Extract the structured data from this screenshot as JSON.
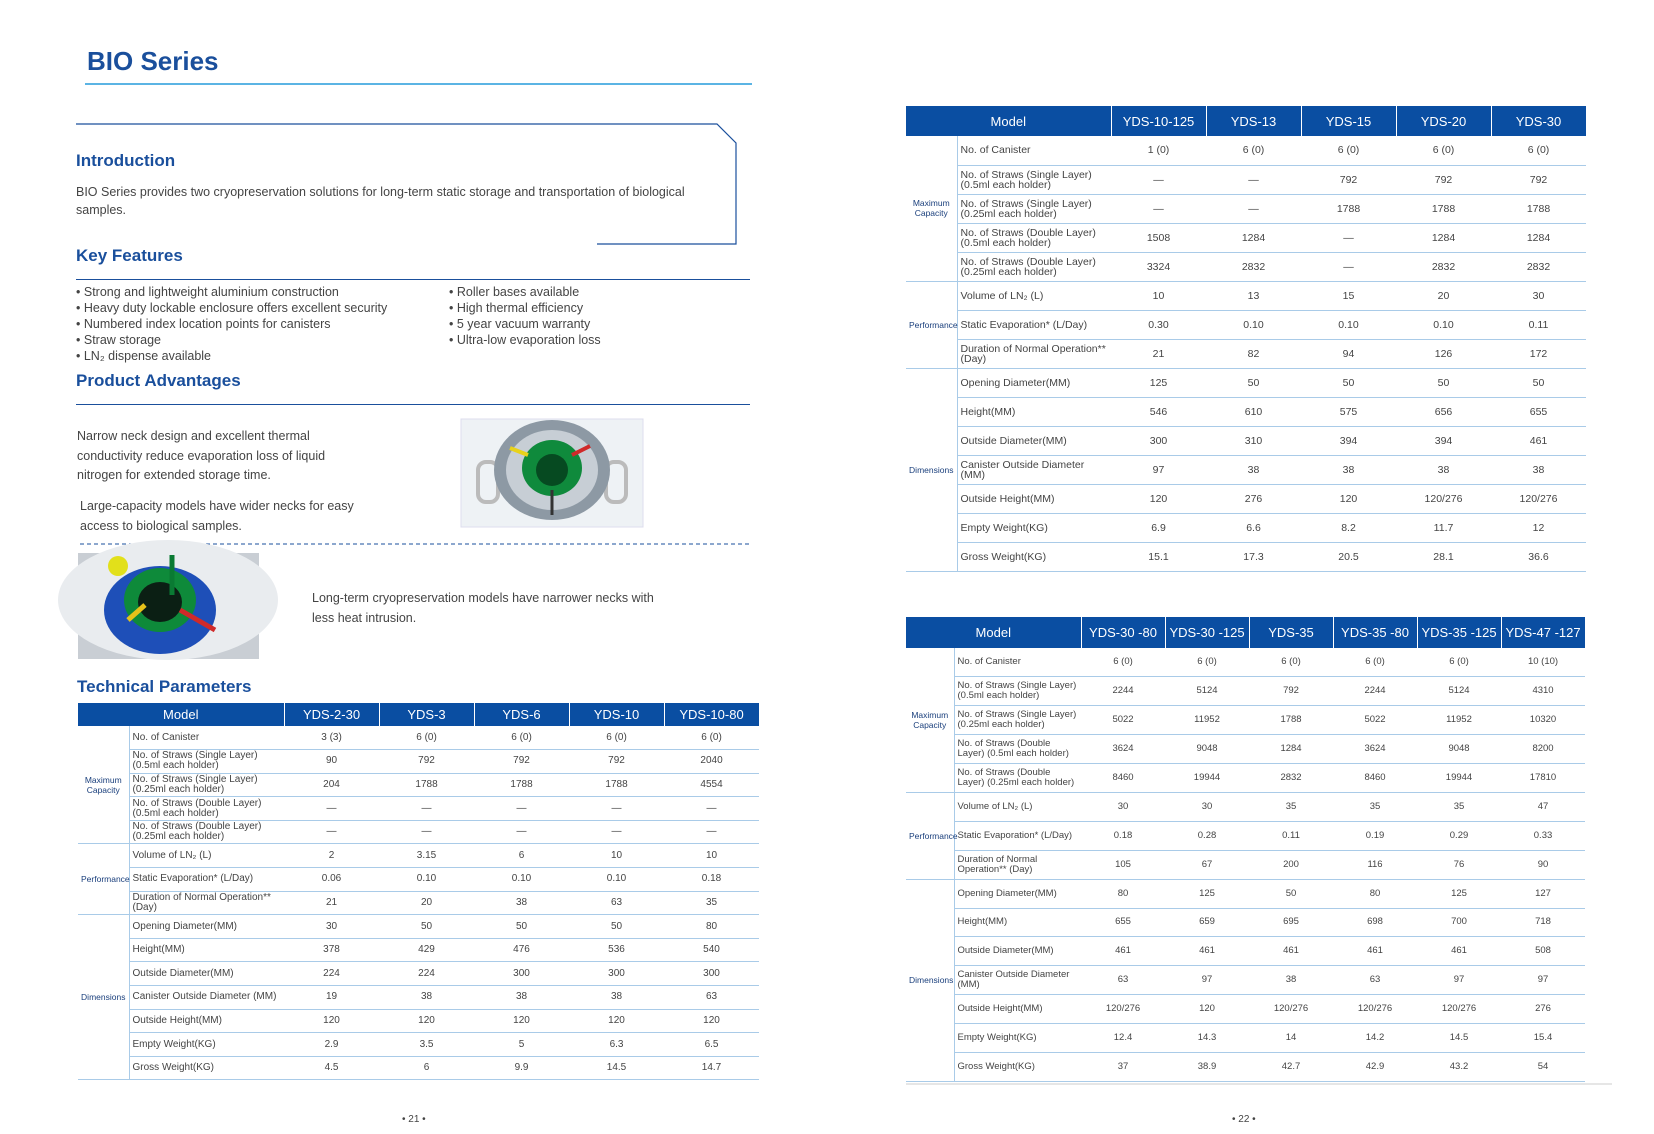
{
  "title": "BIO Series",
  "introduction": {
    "heading": "Introduction",
    "text": "BIO Series provides two cryopreservation solutions for long-term static storage and transportation of biological samples."
  },
  "key_features": {
    "heading": "Key Features",
    "items": [
      "Strong and lightweight aluminium construction",
      "Heavy duty lockable enclosure offers excellent security",
      "Numbered index location points for canisters",
      "Straw storage",
      "LN₂ dispense available",
      "Roller bases available",
      "High thermal efficiency",
      "5 year vacuum warranty",
      "Ultra-low evaporation loss"
    ]
  },
  "product_advantages": {
    "heading": "Product Advantages",
    "texts": [
      "Narrow neck design and excellent thermal conductivity reduce evaporation loss of liquid nitrogen for extended storage time.",
      "Large-capacity models have wider necks for easy access to biological samples.",
      "Long-term cryopreservation models have narrower necks with less heat intrusion."
    ]
  },
  "technical_parameters": {
    "heading": "Technical Parameters"
  },
  "tables": [
    {
      "header": [
        "Model",
        "YDS-2-30",
        "YDS-3",
        "YDS-6",
        "YDS-10",
        "YDS-10-80"
      ],
      "groups": [
        {
          "label": "Maximum Capacity",
          "rows": [
            {
              "label": "No. of Canister",
              "values": [
                "3 (3)",
                "6 (0)",
                "6 (0)",
                "6 (0)",
                "6 (0)"
              ]
            },
            {
              "label": "No. of Straws (Single Layer) (0.5ml each holder)",
              "values": [
                "90",
                "792",
                "792",
                "792",
                "2040"
              ]
            },
            {
              "label": "No. of Straws (Single Layer) (0.25ml each holder)",
              "values": [
                "204",
                "1788",
                "1788",
                "1788",
                "4554"
              ]
            },
            {
              "label": "No. of Straws (Double Layer) (0.5ml each holder)",
              "values": [
                "—",
                "—",
                "—",
                "—",
                "—"
              ]
            },
            {
              "label": "No. of Straws (Double Layer) (0.25ml each holder)",
              "values": [
                "—",
                "—",
                "—",
                "—",
                "—"
              ]
            }
          ]
        },
        {
          "label": "Performance",
          "rows": [
            {
              "label": "Volume of LN₂ (L)",
              "values": [
                "2",
                "3.15",
                "6",
                "10",
                "10"
              ]
            },
            {
              "label": "Static Evaporation* (L/Day)",
              "values": [
                "0.06",
                "0.10",
                "0.10",
                "0.10",
                "0.18"
              ]
            },
            {
              "label": "Duration of Normal Operation** (Day)",
              "values": [
                "21",
                "20",
                "38",
                "63",
                "35"
              ]
            }
          ]
        },
        {
          "label": "Dimensions",
          "rows": [
            {
              "label": "Opening Diameter(MM)",
              "values": [
                "30",
                "50",
                "50",
                "50",
                "80"
              ]
            },
            {
              "label": "Height(MM)",
              "values": [
                "378",
                "429",
                "476",
                "536",
                "540"
              ]
            },
            {
              "label": "Outside Diameter(MM)",
              "values": [
                "224",
                "224",
                "300",
                "300",
                "300"
              ]
            },
            {
              "label": "Canister Outside Diameter (MM)",
              "values": [
                "19",
                "38",
                "38",
                "38",
                "63"
              ]
            },
            {
              "label": "Outside Height(MM)",
              "values": [
                "120",
                "120",
                "120",
                "120",
                "120"
              ]
            },
            {
              "label": "Empty Weight(KG)",
              "values": [
                "2.9",
                "3.5",
                "5",
                "6.3",
                "6.5"
              ]
            },
            {
              "label": "Gross Weight(KG)",
              "values": [
                "4.5",
                "6",
                "9.9",
                "14.5",
                "14.7"
              ]
            }
          ]
        }
      ]
    },
    {
      "header": [
        "Model",
        "YDS-10-125",
        "YDS-13",
        "YDS-15",
        "YDS-20",
        "YDS-30"
      ],
      "groups": [
        {
          "label": "Maximum Capacity",
          "rows": [
            {
              "label": "No. of Canister",
              "values": [
                "1 (0)",
                "6 (0)",
                "6 (0)",
                "6 (0)",
                "6 (0)"
              ]
            },
            {
              "label": "No. of Straws (Single Layer) (0.5ml each holder)",
              "values": [
                "—",
                "—",
                "792",
                "792",
                "792"
              ]
            },
            {
              "label": "No. of Straws (Single Layer) (0.25ml each holder)",
              "values": [
                "—",
                "—",
                "1788",
                "1788",
                "1788"
              ]
            },
            {
              "label": "No. of Straws (Double Layer) (0.5ml each holder)",
              "values": [
                "1508",
                "1284",
                "—",
                "1284",
                "1284"
              ]
            },
            {
              "label": "No. of Straws (Double Layer) (0.25ml each holder)",
              "values": [
                "3324",
                "2832",
                "—",
                "2832",
                "2832"
              ]
            }
          ]
        },
        {
          "label": "Performance",
          "rows": [
            {
              "label": "Volume of LN₂ (L)",
              "values": [
                "10",
                "13",
                "15",
                "20",
                "30"
              ]
            },
            {
              "label": "Static Evaporation* (L/Day)",
              "values": [
                "0.30",
                "0.10",
                "0.10",
                "0.10",
                "0.11"
              ]
            },
            {
              "label": "Duration of Normal Operation** (Day)",
              "values": [
                "21",
                "82",
                "94",
                "126",
                "172"
              ]
            }
          ]
        },
        {
          "label": "Dimensions",
          "rows": [
            {
              "label": "Opening Diameter(MM)",
              "values": [
                "125",
                "50",
                "50",
                "50",
                "50"
              ]
            },
            {
              "label": "Height(MM)",
              "values": [
                "546",
                "610",
                "575",
                "656",
                "655"
              ]
            },
            {
              "label": "Outside Diameter(MM)",
              "values": [
                "300",
                "310",
                "394",
                "394",
                "461"
              ]
            },
            {
              "label": "Canister Outside Diameter (MM)",
              "values": [
                "97",
                "38",
                "38",
                "38",
                "38"
              ]
            },
            {
              "label": "Outside Height(MM)",
              "values": [
                "120",
                "276",
                "120",
                "120/276",
                "120/276"
              ]
            },
            {
              "label": "Empty Weight(KG)",
              "values": [
                "6.9",
                "6.6",
                "8.2",
                "11.7",
                "12"
              ]
            },
            {
              "label": "Gross Weight(KG)",
              "values": [
                "15.1",
                "17.3",
                "20.5",
                "28.1",
                "36.6"
              ]
            }
          ]
        }
      ]
    },
    {
      "header": [
        "Model",
        "YDS-30 -80",
        "YDS-30 -125",
        "YDS-35",
        "YDS-35 -80",
        "YDS-35 -125",
        "YDS-47 -127"
      ],
      "groups": [
        {
          "label": "Maximum Capacity",
          "rows": [
            {
              "label": "No. of Canister",
              "values": [
                "6 (0)",
                "6 (0)",
                "6 (0)",
                "6 (0)",
                "6 (0)",
                "10 (10)"
              ]
            },
            {
              "label": "No. of Straws (Single Layer) (0.5ml each holder)",
              "values": [
                "2244",
                "5124",
                "792",
                "2244",
                "5124",
                "4310"
              ]
            },
            {
              "label": "No. of Straws (Single Layer) (0.25ml each holder)",
              "values": [
                "5022",
                "11952",
                "1788",
                "5022",
                "11952",
                "10320"
              ]
            },
            {
              "label": "No. of Straws (Double Layer) (0.5ml each holder)",
              "values": [
                "3624",
                "9048",
                "1284",
                "3624",
                "9048",
                "8200"
              ]
            },
            {
              "label": "No. of Straws (Double Layer) (0.25ml each holder)",
              "values": [
                "8460",
                "19944",
                "2832",
                "8460",
                "19944",
                "17810"
              ]
            }
          ]
        },
        {
          "label": "Performance",
          "rows": [
            {
              "label": "Volume of LN₂ (L)",
              "values": [
                "30",
                "30",
                "35",
                "35",
                "35",
                "47"
              ]
            },
            {
              "label": "Static Evaporation* (L/Day)",
              "values": [
                "0.18",
                "0.28",
                "0.11",
                "0.19",
                "0.29",
                "0.33"
              ]
            },
            {
              "label": "Duration of Normal Operation** (Day)",
              "values": [
                "105",
                "67",
                "200",
                "116",
                "76",
                "90"
              ]
            }
          ]
        },
        {
          "label": "Dimensions",
          "rows": [
            {
              "label": "Opening Diameter(MM)",
              "values": [
                "80",
                "125",
                "50",
                "80",
                "125",
                "127"
              ]
            },
            {
              "label": "Height(MM)",
              "values": [
                "655",
                "659",
                "695",
                "698",
                "700",
                "718"
              ]
            },
            {
              "label": "Outside Diameter(MM)",
              "values": [
                "461",
                "461",
                "461",
                "461",
                "461",
                "508"
              ]
            },
            {
              "label": "Canister Outside Diameter (MM)",
              "values": [
                "63",
                "97",
                "38",
                "63",
                "97",
                "97"
              ]
            },
            {
              "label": "Outside Height(MM)",
              "values": [
                "120/276",
                "120",
                "120/276",
                "120/276",
                "120/276",
                "276"
              ]
            },
            {
              "label": "Empty Weight(KG)",
              "values": [
                "12.4",
                "14.3",
                "14",
                "14.2",
                "14.5",
                "15.4"
              ]
            },
            {
              "label": "Gross Weight(KG)",
              "values": [
                "37",
                "38.9",
                "42.7",
                "42.9",
                "43.2",
                "54"
              ]
            }
          ]
        }
      ]
    }
  ],
  "page_numbers": [
    "• 21 •",
    "• 22 •"
  ]
}
